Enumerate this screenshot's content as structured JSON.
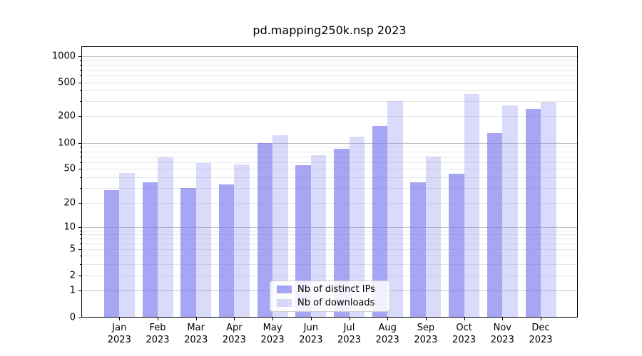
{
  "title": "pd.mapping250k.nsp 2023",
  "colors": {
    "bar_base": "#7777ee",
    "ips_alpha": 0.65,
    "downloads_alpha": 0.27,
    "grid_major": "#c2c2c2",
    "grid_minor": "#e6e6e6",
    "spine": "#000000",
    "legend_border": "#cfcfcf",
    "background": "#ffffff"
  },
  "chart_data": {
    "type": "bar",
    "title": "pd.mapping250k.nsp 2023",
    "categories": [
      "Jan",
      "Feb",
      "Mar",
      "Apr",
      "May",
      "Jun",
      "Jul",
      "Aug",
      "Sep",
      "Oct",
      "Nov",
      "Dec"
    ],
    "x_year_label": "2023",
    "series": [
      {
        "name": "Nb of distinct IPs",
        "color": "#7777ee",
        "alpha": 0.65,
        "values": [
          28,
          35,
          30,
          33,
          100,
          55,
          85,
          155,
          35,
          44,
          130,
          245
        ]
      },
      {
        "name": "Nb of downloads",
        "color": "#7777ee",
        "alpha": 0.27,
        "values": [
          45,
          68,
          58,
          56,
          122,
          72,
          117,
          300,
          70,
          365,
          270,
          295
        ]
      }
    ],
    "yscale": "symlog",
    "yticks": [
      0,
      1,
      2,
      5,
      10,
      20,
      50,
      100,
      200,
      500,
      1000
    ],
    "ylim": [
      0,
      1300
    ],
    "grid": true,
    "legend_position": "lower center"
  }
}
